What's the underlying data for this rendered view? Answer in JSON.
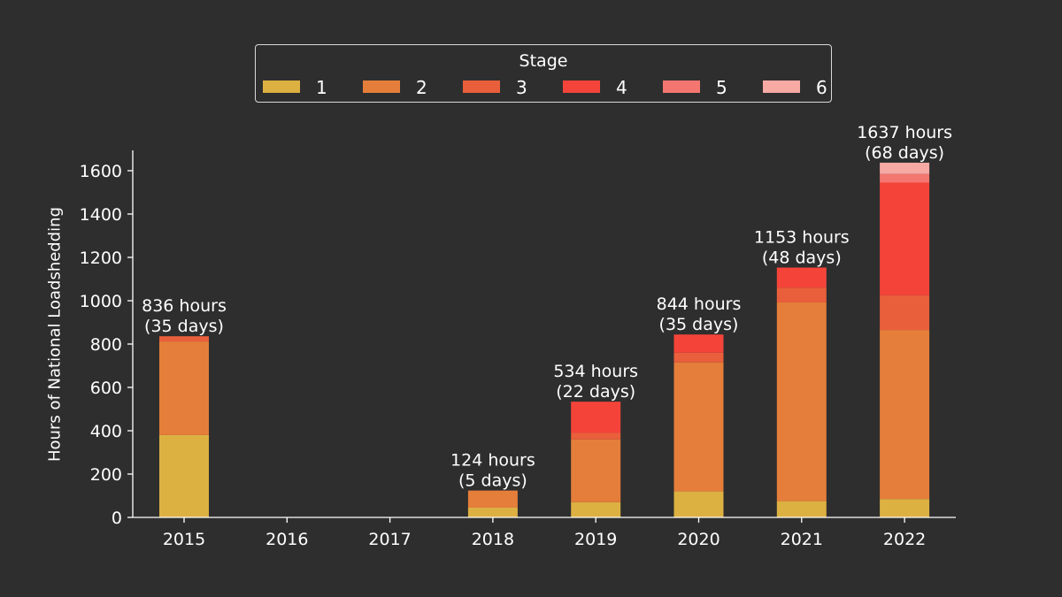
{
  "chart_data": {
    "type": "bar",
    "stacked": true,
    "categories": [
      "2015",
      "2016",
      "2017",
      "2018",
      "2019",
      "2020",
      "2021",
      "2022"
    ],
    "ylabel": "Hours of National Loadshedding",
    "xlabel": "",
    "ylim": [
      0,
      1700
    ],
    "yticks": [
      0,
      200,
      400,
      600,
      800,
      1000,
      1200,
      1400,
      1600
    ],
    "legend": {
      "title": "Stage",
      "placement": "top-center"
    },
    "series": [
      {
        "name": "1",
        "color": "#dcb142",
        "values": [
          380,
          0,
          0,
          45,
          70,
          120,
          75,
          85
        ]
      },
      {
        "name": "2",
        "color": "#e57e3a",
        "values": [
          432,
          0,
          0,
          79,
          290,
          595,
          917,
          780
        ]
      },
      {
        "name": "3",
        "color": "#e95f3b",
        "values": [
          24,
          0,
          0,
          0,
          30,
          45,
          68,
          160
        ]
      },
      {
        "name": "4",
        "color": "#f4443a",
        "values": [
          0,
          0,
          0,
          0,
          144,
          84,
          93,
          520
        ]
      },
      {
        "name": "5",
        "color": "#f47670",
        "values": [
          0,
          0,
          0,
          0,
          0,
          0,
          0,
          40
        ]
      },
      {
        "name": "6",
        "color": "#f7a9a4",
        "values": [
          0,
          0,
          0,
          0,
          0,
          0,
          0,
          52
        ]
      }
    ],
    "annotations": [
      {
        "category": "2015",
        "value": 836,
        "line1": "836 hours",
        "line2": "(35 days)"
      },
      {
        "category": "2018",
        "value": 124,
        "line1": "124 hours",
        "line2": "(5 days)"
      },
      {
        "category": "2019",
        "value": 534,
        "line1": "534 hours",
        "line2": "(22 days)"
      },
      {
        "category": "2020",
        "value": 844,
        "line1": "844 hours",
        "line2": "(35 days)"
      },
      {
        "category": "2021",
        "value": 1153,
        "line1": "1153 hours",
        "line2": "(48 days)"
      },
      {
        "category": "2022",
        "value": 1637,
        "line1": "1637 hours",
        "line2": "(68 days)"
      }
    ],
    "grid": false
  }
}
